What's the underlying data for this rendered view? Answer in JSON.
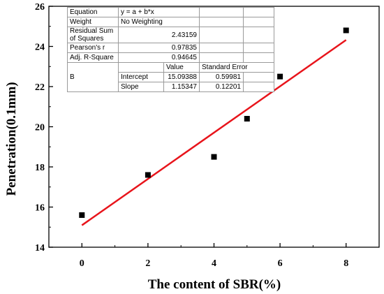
{
  "chart_data": {
    "type": "scatter",
    "xlabel": "The content of SBR(%)",
    "ylabel": "Penetration(0.1mm)",
    "xlim": [
      -1,
      9
    ],
    "ylim": [
      14,
      26
    ],
    "x_ticks": [
      0,
      2,
      4,
      6,
      8
    ],
    "y_ticks": [
      14,
      16,
      18,
      20,
      22,
      24,
      26
    ],
    "points": [
      {
        "x": 0,
        "y": 15.6
      },
      {
        "x": 2,
        "y": 17.6
      },
      {
        "x": 4,
        "y": 18.5
      },
      {
        "x": 5,
        "y": 20.4
      },
      {
        "x": 6,
        "y": 22.5
      },
      {
        "x": 8,
        "y": 24.8
      }
    ],
    "fit_line": {
      "intercept": 15.09388,
      "slope": 1.15347,
      "x_range": [
        0,
        8
      ],
      "color": "#e8141b"
    },
    "marker_color": "#000000",
    "grid": false
  },
  "fit_table": {
    "equation_label": "Equation",
    "equation_value": "y = a + b*x",
    "weight_label": "Weight",
    "weight_value": "No Weighting",
    "rss_label": "Residual Sum of Squares",
    "rss_value": "2.43159",
    "pearson_label": "Pearson's r",
    "pearson_value": "0.97835",
    "adjr_label": "Adj. R-Square",
    "adjr_value": "0.94645",
    "value_header": "Value",
    "se_header": "Standard Error",
    "b_label": "B",
    "intercept_label": "Intercept",
    "intercept_value": "15.09388",
    "intercept_se": "0.59981",
    "slope_label": "Slope",
    "slope_value": "1.15347",
    "slope_se": "0.12201"
  }
}
